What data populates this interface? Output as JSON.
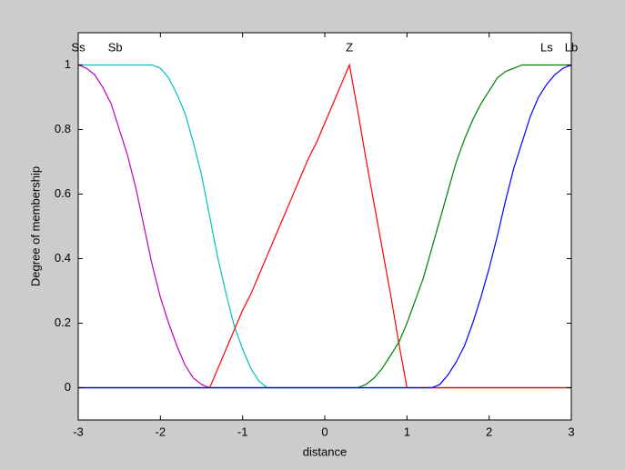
{
  "chart_data": {
    "type": "line",
    "xlabel": "distance",
    "ylabel": "Degree of membership",
    "x": [
      -3,
      -2.9,
      -2.8,
      -2.7,
      -2.6,
      -2.5,
      -2.4,
      -2.3,
      -2.2,
      -2.1,
      -2,
      -1.9,
      -1.8,
      -1.7,
      -1.6,
      -1.5,
      -1.4,
      -1.3,
      -1.2,
      -1.1,
      -1,
      -0.9,
      -0.8,
      -0.7,
      -0.6,
      -0.5,
      -0.4,
      -0.3,
      -0.2,
      -0.1,
      0,
      0.1,
      0.2,
      0.3,
      0.4,
      0.5,
      0.6,
      0.7,
      0.8,
      0.9,
      1,
      1.1,
      1.2,
      1.3,
      1.4,
      1.5,
      1.6,
      1.7,
      1.8,
      1.9,
      2,
      2.1,
      2.2,
      2.3,
      2.4,
      2.5,
      2.6,
      2.7,
      2.8,
      2.9,
      3
    ],
    "series": [
      {
        "name": "Ss",
        "color": "#c000c0",
        "values": [
          1,
          0.99,
          0.97,
          0.93,
          0.88,
          0.8,
          0.72,
          0.62,
          0.5,
          0.38,
          0.28,
          0.2,
          0.13,
          0.07,
          0.03,
          0.01,
          0,
          0,
          0,
          0,
          0,
          0,
          0,
          0,
          0,
          0,
          0,
          0,
          0,
          0,
          0,
          0,
          0,
          0,
          0,
          0,
          0,
          0,
          0,
          0,
          0,
          0,
          0,
          0,
          0,
          0,
          0,
          0,
          0,
          0,
          0,
          0,
          0,
          0,
          0,
          0,
          0,
          0,
          0,
          0,
          0
        ]
      },
      {
        "name": "Sb",
        "color": "#00c0c0",
        "values": [
          1,
          1,
          1,
          1,
          1,
          1,
          1,
          1,
          1,
          1,
          0.99,
          0.96,
          0.91,
          0.85,
          0.76,
          0.66,
          0.53,
          0.4,
          0.29,
          0.19,
          0.12,
          0.06,
          0.02,
          0,
          0,
          0,
          0,
          0,
          0,
          0,
          0,
          0,
          0,
          0,
          0,
          0,
          0,
          0,
          0,
          0,
          0,
          0,
          0,
          0,
          0,
          0,
          0,
          0,
          0,
          0,
          0,
          0,
          0,
          0,
          0,
          0,
          0,
          0,
          0,
          0,
          0
        ]
      },
      {
        "name": "Z",
        "color": "#ff0000",
        "values": [
          0,
          0,
          0,
          0,
          0,
          0,
          0,
          0,
          0,
          0,
          0,
          0,
          0,
          0,
          0,
          0,
          0,
          0.06,
          0.12,
          0.18,
          0.24,
          0.29,
          0.35,
          0.41,
          0.47,
          0.53,
          0.59,
          0.65,
          0.71,
          0.76,
          0.82,
          0.88,
          0.94,
          1,
          0.86,
          0.71,
          0.57,
          0.43,
          0.29,
          0.14,
          0,
          0,
          0,
          0,
          0,
          0,
          0,
          0,
          0,
          0,
          0,
          0,
          0,
          0,
          0,
          0,
          0,
          0,
          0,
          0,
          0
        ]
      },
      {
        "name": "Ls",
        "color": "#008000",
        "values": [
          0,
          0,
          0,
          0,
          0,
          0,
          0,
          0,
          0,
          0,
          0,
          0,
          0,
          0,
          0,
          0,
          0,
          0,
          0,
          0,
          0,
          0,
          0,
          0,
          0,
          0,
          0,
          0,
          0,
          0,
          0,
          0,
          0,
          0,
          0,
          0.01,
          0.03,
          0.06,
          0.1,
          0.14,
          0.2,
          0.27,
          0.34,
          0.43,
          0.52,
          0.61,
          0.7,
          0.77,
          0.83,
          0.88,
          0.92,
          0.96,
          0.98,
          0.99,
          1,
          1,
          1,
          1,
          1,
          1,
          1
        ]
      },
      {
        "name": "Lb",
        "color": "#0000ff",
        "values": [
          0,
          0,
          0,
          0,
          0,
          0,
          0,
          0,
          0,
          0,
          0,
          0,
          0,
          0,
          0,
          0,
          0,
          0,
          0,
          0,
          0,
          0,
          0,
          0,
          0,
          0,
          0,
          0,
          0,
          0,
          0,
          0,
          0,
          0,
          0,
          0,
          0,
          0,
          0,
          0,
          0,
          0,
          0,
          0,
          0.01,
          0.04,
          0.08,
          0.13,
          0.2,
          0.28,
          0.37,
          0.47,
          0.58,
          0.68,
          0.76,
          0.84,
          0.9,
          0.94,
          0.97,
          0.99,
          1
        ]
      }
    ],
    "xlim": [
      -3,
      3
    ],
    "ylim": [
      -0.1,
      1.1
    ],
    "xticks": [
      -3,
      -2,
      -1,
      0,
      1,
      2,
      3
    ],
    "yticks": [
      0,
      0.2,
      0.4,
      0.6,
      0.8,
      1
    ],
    "grid": false
  }
}
